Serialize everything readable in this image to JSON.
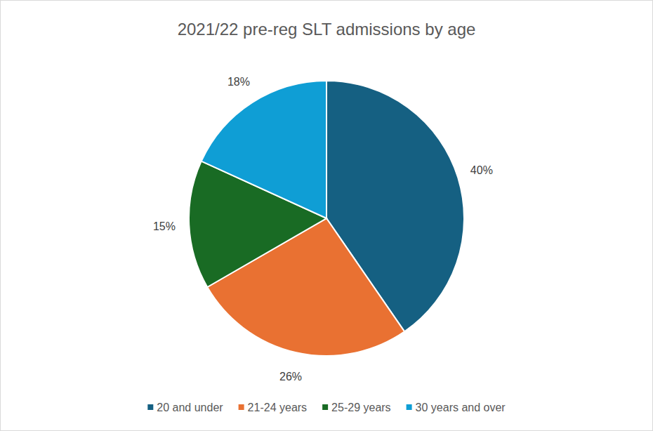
{
  "chart_data": {
    "type": "pie",
    "title": "2021/22 pre-reg SLT admissions by age",
    "categories": [
      "20 and under",
      "21-24 years",
      "25-29 years",
      "30 years and over"
    ],
    "values": [
      40,
      26,
      15,
      18
    ],
    "value_labels": [
      "40%",
      "26%",
      "15%",
      "18%"
    ],
    "colors": [
      "#156082",
      "#e97132",
      "#196b24",
      "#0f9ed5"
    ],
    "data_labels": true,
    "legend": "bottom"
  }
}
